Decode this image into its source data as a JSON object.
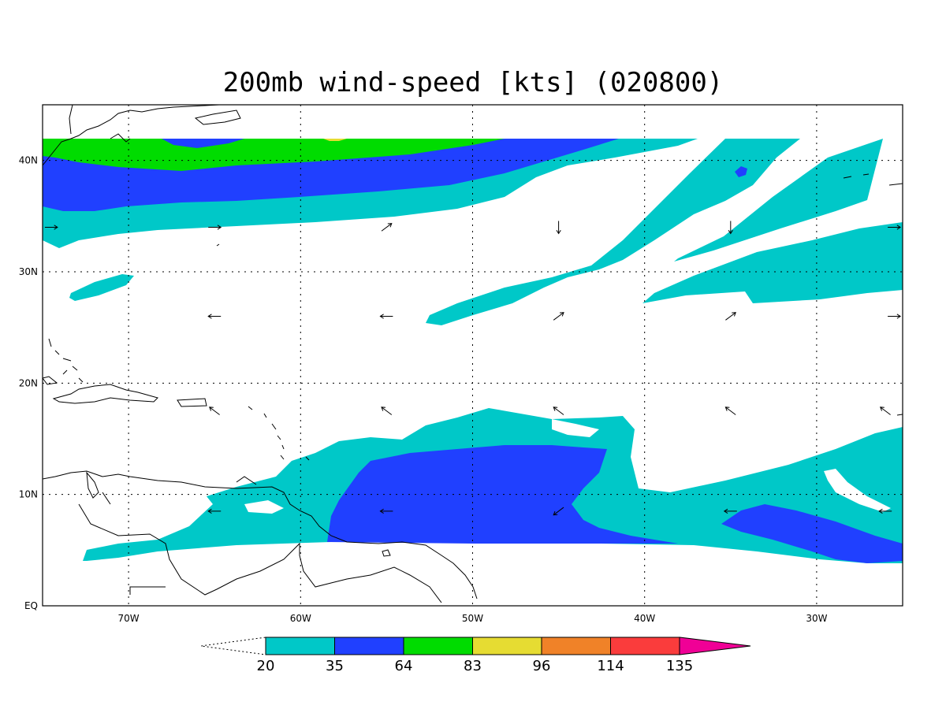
{
  "title": "200mb wind-speed [kts] (020800)",
  "map": {
    "lon_range": [
      -75,
      -25
    ],
    "lat_range": [
      0,
      45
    ],
    "x_ticks": [
      "70W",
      "60W",
      "50W",
      "40W",
      "30W"
    ],
    "y_ticks": [
      "EQ",
      "10N",
      "20N",
      "30N",
      "40N"
    ],
    "grid": "dotted",
    "data_lat_range": [
      6,
      42
    ]
  },
  "colorbar": {
    "labels": [
      "20",
      "35",
      "64",
      "83",
      "96",
      "114",
      "135"
    ],
    "colors": [
      "#00c8c8",
      "#2040ff",
      "#00dc00",
      "#e6dc32",
      "#f08228",
      "#fa3c3c",
      "#f00096"
    ]
  },
  "wind_vectors": [
    {
      "lon": -74.5,
      "lat": 34,
      "dir": "E"
    },
    {
      "lon": -65,
      "lat": 34,
      "dir": "E"
    },
    {
      "lon": -55,
      "lat": 34,
      "dir": "NE"
    },
    {
      "lon": -45,
      "lat": 34,
      "dir": "S"
    },
    {
      "lon": -35,
      "lat": 34,
      "dir": "S"
    },
    {
      "lon": -25.5,
      "lat": 34,
      "dir": "E"
    },
    {
      "lon": -65,
      "lat": 26,
      "dir": "W"
    },
    {
      "lon": -55,
      "lat": 26,
      "dir": "W"
    },
    {
      "lon": -45,
      "lat": 26,
      "dir": "NE"
    },
    {
      "lon": -35,
      "lat": 26,
      "dir": "NE"
    },
    {
      "lon": -25.5,
      "lat": 26,
      "dir": "E"
    },
    {
      "lon": -65,
      "lat": 17.5,
      "dir": "NW"
    },
    {
      "lon": -55,
      "lat": 17.5,
      "dir": "NW"
    },
    {
      "lon": -45,
      "lat": 17.5,
      "dir": "NW"
    },
    {
      "lon": -35,
      "lat": 17.5,
      "dir": "NW"
    },
    {
      "lon": -26,
      "lat": 17.5,
      "dir": "NW"
    },
    {
      "lon": -65,
      "lat": 8.5,
      "dir": "W"
    },
    {
      "lon": -55,
      "lat": 8.5,
      "dir": "W"
    },
    {
      "lon": -45,
      "lat": 8.5,
      "dir": "SW"
    },
    {
      "lon": -35,
      "lat": 8.5,
      "dir": "W"
    },
    {
      "lon": -26,
      "lat": 8.5,
      "dir": "W"
    }
  ]
}
